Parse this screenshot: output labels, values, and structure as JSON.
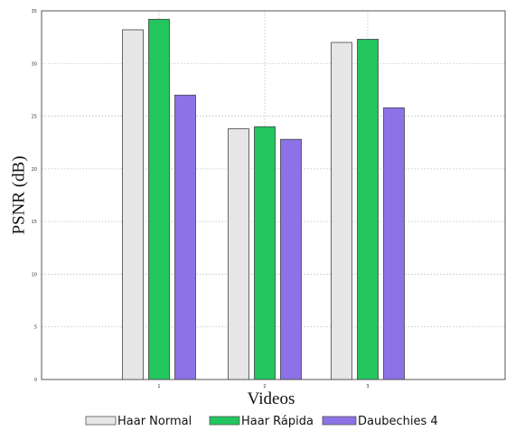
{
  "chart_data": {
    "type": "bar",
    "title": "",
    "xlabel": "Videos",
    "ylabel": "PSNR (dB)",
    "categories": [
      "1",
      "2",
      "3"
    ],
    "ylim": [
      0,
      35
    ],
    "yticks": [
      "0",
      "5",
      "10",
      "15",
      "20",
      "25",
      "30",
      "35"
    ],
    "grid": true,
    "legend_position": "bottom",
    "series": [
      {
        "name": "Haar Normal",
        "color": "#e6e6e6",
        "values": [
          33.2,
          23.8,
          32.0
        ]
      },
      {
        "name": "Haar Rápida",
        "color": "#22c55e",
        "values": [
          34.2,
          24.0,
          32.3
        ]
      },
      {
        "name": "Daubechies 4",
        "color": "#8b72e6",
        "values": [
          27.0,
          22.8,
          25.8
        ]
      }
    ]
  }
}
